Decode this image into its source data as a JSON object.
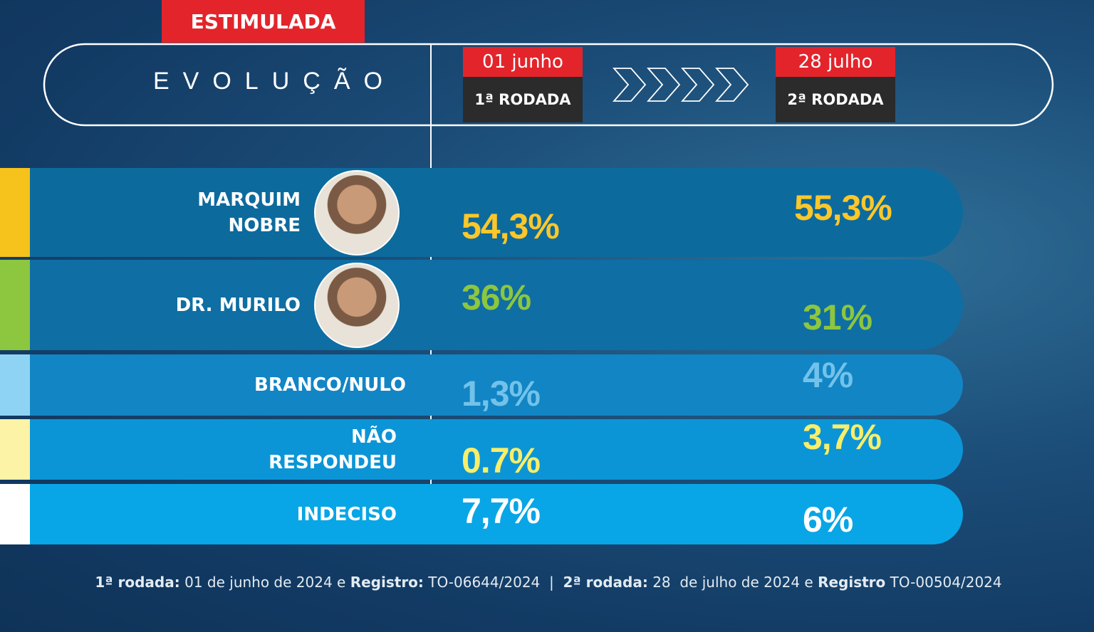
{
  "badge": "ESTIMULADA",
  "heading": "EVOLUÇÃO",
  "rounds": [
    {
      "date": "01 junho",
      "label": "1ª RODADA"
    },
    {
      "date": "28 julho",
      "label": "2ª RODADA"
    }
  ],
  "rows": [
    {
      "name": "MARQUIM NOBRE",
      "first": "54,3%",
      "second": "55,3%",
      "accent": "#f6c21c",
      "value_color": "#fbc72a",
      "band": "#0d6a9d"
    },
    {
      "name": "DR. MURILO",
      "first": "36%",
      "second": "31%",
      "accent": "#8dc63f",
      "value_color": "#8dc63f",
      "band": "#0f6ea3"
    },
    {
      "name": "BRANCO/NULO",
      "first": "1,3%",
      "second": "4%",
      "accent": "#8fd3f4",
      "value_color": "#72c2ea",
      "band": "#1285c4"
    },
    {
      "name": "NÃO RESPONDEU",
      "first": "0.7%",
      "second": "3,7%",
      "accent": "#fdf3a6",
      "value_color": "#f8ee6a",
      "band": "#0c95d6"
    },
    {
      "name": "INDECISO",
      "first": "7,7%",
      "second": "6%",
      "accent": "#ffffff",
      "value_color": "#ffffff",
      "band": "#08a6e6"
    }
  ],
  "footer": [
    {
      "text": "1ª rodada:",
      "bold": true
    },
    {
      "text": " 01 de junho de 2024 e ",
      "bold": false
    },
    {
      "text": "Registro:",
      "bold": true
    },
    {
      "text": " TO-06644/2024  |  ",
      "bold": false
    },
    {
      "text": "2ª rodada:",
      "bold": true
    },
    {
      "text": " 28  de julho de 2024 e ",
      "bold": false
    },
    {
      "text": "Registro",
      "bold": true
    },
    {
      "text": " TO-00504/2024",
      "bold": false
    }
  ]
}
